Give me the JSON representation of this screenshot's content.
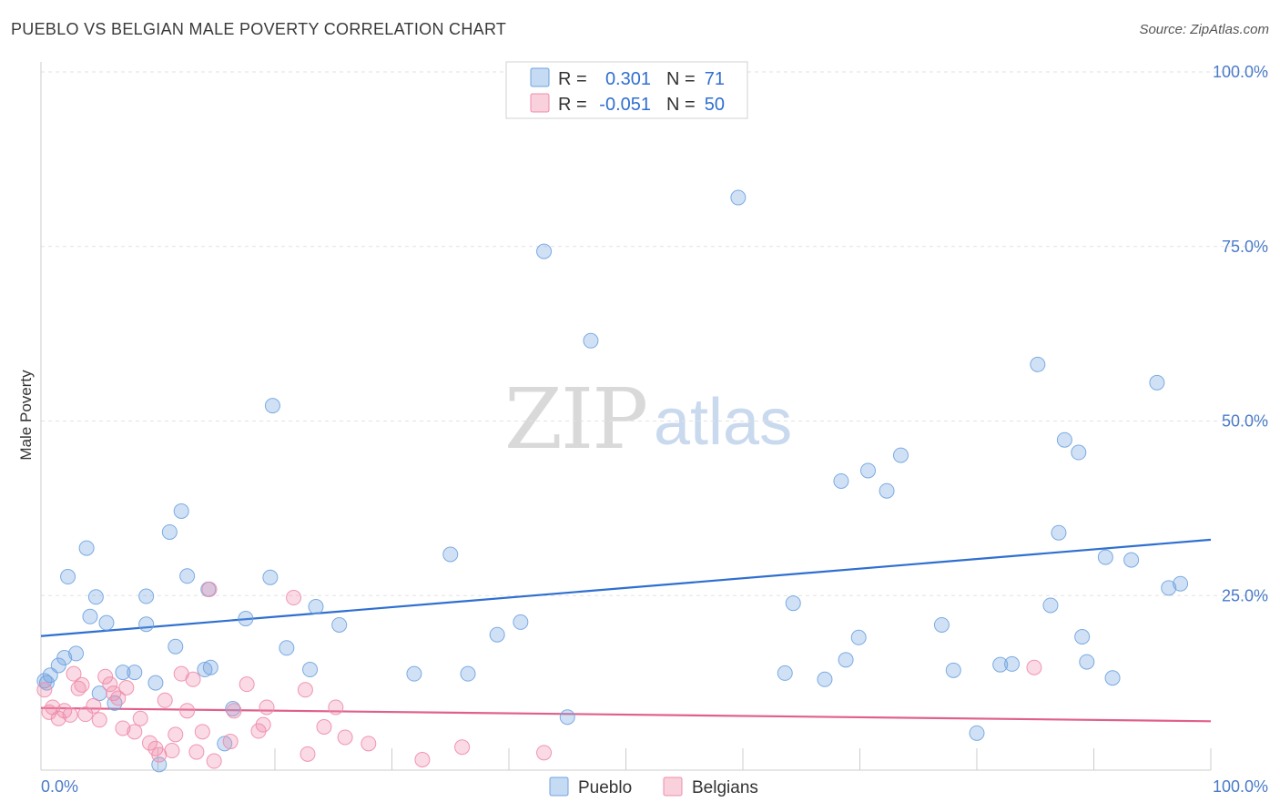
{
  "header": {
    "title": "PUEBLO VS BELGIAN MALE POVERTY CORRELATION CHART",
    "source": "Source: ZipAtlas.com"
  },
  "watermark": {
    "zip": "ZIP",
    "atlas": "atlas"
  },
  "legend": {
    "r_label": "R =",
    "n_label": "N =",
    "rows": [
      {
        "r": "0.301",
        "n": "71",
        "color": "#6fa3e0"
      },
      {
        "r": "-0.051",
        "n": "50",
        "color": "#f08cab"
      }
    ]
  },
  "bottom_legend": [
    "Pueblo",
    "Belgians"
  ],
  "chart_data": {
    "type": "scatter",
    "title": "PUEBLO VS BELGIAN MALE POVERTY CORRELATION CHART",
    "xlabel": "",
    "ylabel": "Male Poverty",
    "xlim": [
      0,
      100
    ],
    "ylim": [
      0,
      100
    ],
    "x_tick_labels": [
      "0.0%",
      "100.0%"
    ],
    "y_tick_labels": [
      "25.0%",
      "50.0%",
      "75.0%",
      "100.0%"
    ],
    "y_ticks": [
      25,
      50,
      75,
      100
    ],
    "grid": true,
    "legend_position": "top-center",
    "series": [
      {
        "name": "Pueblo",
        "color": "#6fa3e0",
        "trend": {
          "x": [
            0,
            100
          ],
          "y": [
            19.2,
            33.0
          ],
          "color": "#2f6fd0"
        },
        "points": [
          [
            0.5,
            12.5
          ],
          [
            0.8,
            13.6
          ],
          [
            1.5,
            15.0
          ],
          [
            2.0,
            16.1
          ],
          [
            3.0,
            16.7
          ],
          [
            2.3,
            27.7
          ],
          [
            3.9,
            31.8
          ],
          [
            4.2,
            22.0
          ],
          [
            4.7,
            24.8
          ],
          [
            5.6,
            21.1
          ],
          [
            5.0,
            11.0
          ],
          [
            6.3,
            9.6
          ],
          [
            7.0,
            14.0
          ],
          [
            8.0,
            14.0
          ],
          [
            9.0,
            20.9
          ],
          [
            9.0,
            24.9
          ],
          [
            9.8,
            12.5
          ],
          [
            10.1,
            0.8
          ],
          [
            11.0,
            34.1
          ],
          [
            11.5,
            17.7
          ],
          [
            12.0,
            37.1
          ],
          [
            12.5,
            27.8
          ],
          [
            14.0,
            14.4
          ],
          [
            14.5,
            14.7
          ],
          [
            14.3,
            25.9
          ],
          [
            15.7,
            3.8
          ],
          [
            16.4,
            8.8
          ],
          [
            17.5,
            21.7
          ],
          [
            19.8,
            52.2
          ],
          [
            19.6,
            27.6
          ],
          [
            21.0,
            17.5
          ],
          [
            23.0,
            14.4
          ],
          [
            23.5,
            23.4
          ],
          [
            25.5,
            20.8
          ],
          [
            31.9,
            13.8
          ],
          [
            35.0,
            30.9
          ],
          [
            36.5,
            13.8
          ],
          [
            39.0,
            19.4
          ],
          [
            41.0,
            21.2
          ],
          [
            43.0,
            74.3
          ],
          [
            45.0,
            7.6
          ],
          [
            47.0,
            61.5
          ],
          [
            59.6,
            82.0
          ],
          [
            63.6,
            13.9
          ],
          [
            64.3,
            23.9
          ],
          [
            67.0,
            13.0
          ],
          [
            68.4,
            41.4
          ],
          [
            68.8,
            15.8
          ],
          [
            69.9,
            19.0
          ],
          [
            70.7,
            42.9
          ],
          [
            72.3,
            40.0
          ],
          [
            73.5,
            45.1
          ],
          [
            77.0,
            20.8
          ],
          [
            78.0,
            14.3
          ],
          [
            80.0,
            5.3
          ],
          [
            82.0,
            15.1
          ],
          [
            83.0,
            15.2
          ],
          [
            85.2,
            58.1
          ],
          [
            86.3,
            23.6
          ],
          [
            87.0,
            34.0
          ],
          [
            87.5,
            47.3
          ],
          [
            88.7,
            45.5
          ],
          [
            89.0,
            19.1
          ],
          [
            89.4,
            15.5
          ],
          [
            91.0,
            30.5
          ],
          [
            91.6,
            13.2
          ],
          [
            93.2,
            30.1
          ],
          [
            95.4,
            55.5
          ],
          [
            96.4,
            26.1
          ],
          [
            97.4,
            26.7
          ],
          [
            0.3,
            12.8
          ]
        ]
      },
      {
        "name": "Belgians",
        "color": "#f08cab",
        "trend": {
          "x": [
            0,
            100
          ],
          "y": [
            8.9,
            7.0
          ],
          "color": "#e0608c"
        },
        "points": [
          [
            0.3,
            11.5
          ],
          [
            0.7,
            8.3
          ],
          [
            1.0,
            9.0
          ],
          [
            1.5,
            7.4
          ],
          [
            2.0,
            8.5
          ],
          [
            2.5,
            7.9
          ],
          [
            2.8,
            13.8
          ],
          [
            3.2,
            11.7
          ],
          [
            3.5,
            12.2
          ],
          [
            3.8,
            8.0
          ],
          [
            4.5,
            9.2
          ],
          [
            5.0,
            7.2
          ],
          [
            5.5,
            13.4
          ],
          [
            5.9,
            12.3
          ],
          [
            6.2,
            11.0
          ],
          [
            6.6,
            10.3
          ],
          [
            7.0,
            6.0
          ],
          [
            7.3,
            11.8
          ],
          [
            8.0,
            5.5
          ],
          [
            8.5,
            7.4
          ],
          [
            9.3,
            3.9
          ],
          [
            9.8,
            3.1
          ],
          [
            10.1,
            2.2
          ],
          [
            10.6,
            10.0
          ],
          [
            11.2,
            2.8
          ],
          [
            11.5,
            5.1
          ],
          [
            12.0,
            13.8
          ],
          [
            12.5,
            8.5
          ],
          [
            13.0,
            13.0
          ],
          [
            13.3,
            2.6
          ],
          [
            13.8,
            5.5
          ],
          [
            14.4,
            25.9
          ],
          [
            14.8,
            1.3
          ],
          [
            16.2,
            4.1
          ],
          [
            16.5,
            8.5
          ],
          [
            17.6,
            12.3
          ],
          [
            18.6,
            5.6
          ],
          [
            19.0,
            6.5
          ],
          [
            19.3,
            9.0
          ],
          [
            21.6,
            24.7
          ],
          [
            22.6,
            11.5
          ],
          [
            22.8,
            2.3
          ],
          [
            24.2,
            6.2
          ],
          [
            25.2,
            9.0
          ],
          [
            26.0,
            4.7
          ],
          [
            28.0,
            3.8
          ],
          [
            32.6,
            1.5
          ],
          [
            36.0,
            3.3
          ],
          [
            43.0,
            2.5
          ],
          [
            84.9,
            14.7
          ]
        ]
      }
    ]
  }
}
